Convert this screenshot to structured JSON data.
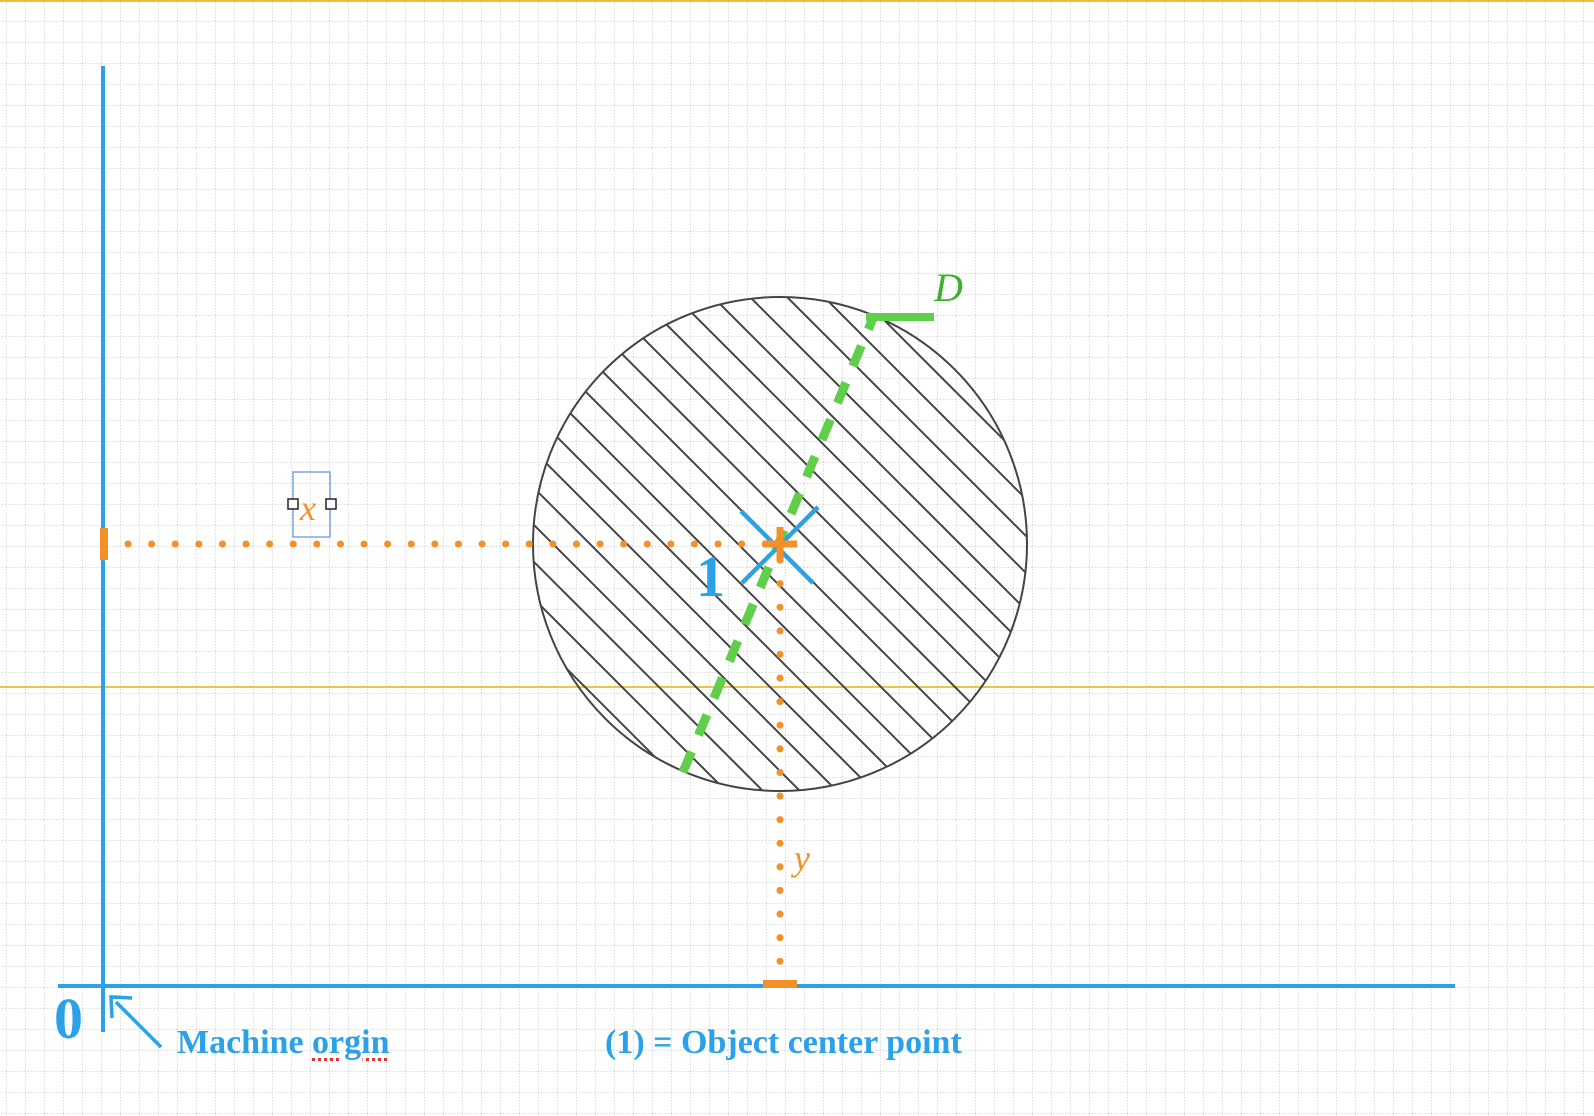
{
  "colors": {
    "axis": "#2ba2e8",
    "dimension": "#f39128",
    "diameter": "#5fcf4a",
    "outline": "#444444",
    "grid": "#9a9a9a",
    "guide": "#e8b400"
  },
  "labels": {
    "origin_zero": "0",
    "machine_origin_prefix": "Machine ",
    "machine_origin_word": "orgin",
    "center_note": "(1) = Object center point",
    "point_number": "1",
    "x_dim": "x",
    "y_dim": "y",
    "diameter": "D"
  },
  "icons": {
    "origin_pointer": "arrow-up-left-icon",
    "center_marker": "cross-mark-icon"
  }
}
